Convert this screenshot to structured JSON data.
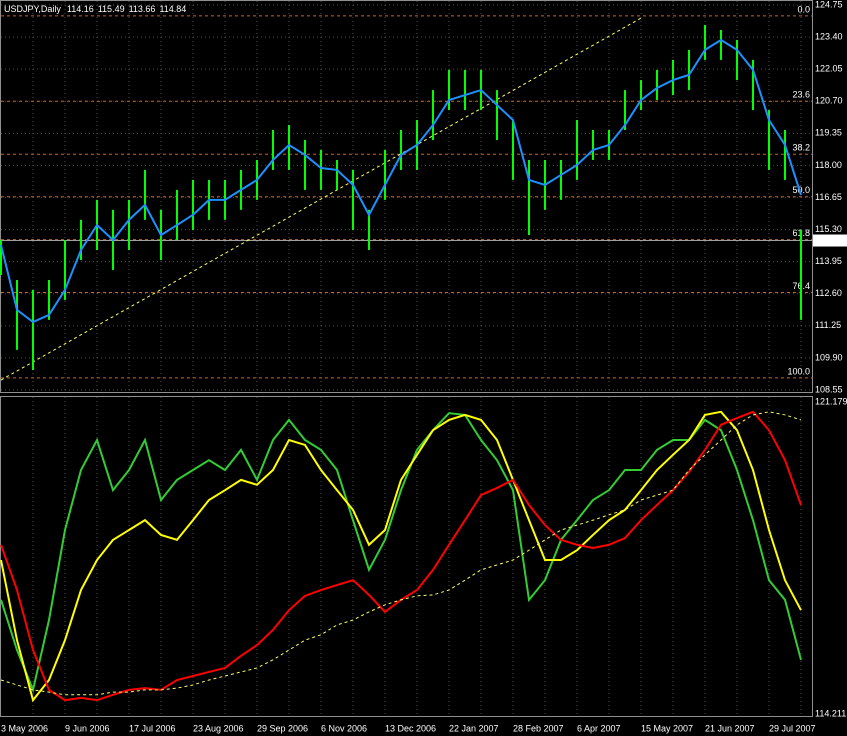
{
  "chart_data": [
    {
      "type": "range",
      "title": "USDJPY,Daily",
      "ohlc": [
        114.16,
        115.49,
        113.66,
        114.84
      ],
      "last_price": 114.84,
      "color": "#00ff00",
      "high": [
        114.86,
        113.18,
        112.76,
        113.18,
        114.86,
        115.71,
        116.55,
        116.13,
        116.55,
        117.81,
        116.13,
        116.97,
        117.39,
        117.39,
        117.39,
        117.81,
        118.23,
        119.49,
        119.7,
        119.07,
        118.65,
        118.23,
        117.81,
        116.13,
        118.65,
        119.49,
        119.91,
        121.17,
        122.02,
        122.02,
        122.02,
        121.17,
        119.91,
        118.23,
        118.23,
        118.23,
        119.91,
        119.49,
        119.49,
        121.17,
        121.59,
        122.02,
        122.44,
        122.86,
        123.91,
        123.7,
        123.28,
        122.44,
        120.33,
        119.49,
        115.28
      ],
      "low": [
        113.39,
        110.24,
        109.39,
        111.5,
        112.34,
        114.02,
        114.44,
        113.6,
        114.44,
        115.71,
        114.02,
        114.86,
        115.28,
        115.71,
        115.71,
        116.13,
        116.55,
        117.81,
        117.81,
        116.97,
        116.97,
        116.97,
        115.28,
        114.44,
        116.55,
        117.81,
        117.81,
        119.07,
        120.33,
        120.33,
        120.33,
        119.07,
        117.39,
        115.07,
        116.13,
        116.55,
        117.39,
        118.23,
        118.23,
        119.49,
        120.33,
        120.75,
        120.96,
        121.17,
        122.44,
        122.44,
        121.59,
        120.33,
        117.81,
        117.39,
        111.5
      ],
      "series": [
        {
          "color": "#1e90ff",
          "values": [
            114.65,
            111.92,
            111.41,
            111.71,
            112.76,
            114.44,
            115.49,
            114.86,
            115.71,
            116.34,
            115.07,
            115.49,
            115.92,
            116.55,
            116.55,
            116.97,
            117.39,
            118.23,
            118.86,
            118.44,
            117.89,
            117.81,
            117.18,
            115.92,
            117.18,
            118.44,
            118.86,
            119.7,
            120.75,
            120.96,
            121.17,
            120.54,
            119.91,
            117.39,
            117.18,
            117.6,
            118.02,
            118.65,
            118.86,
            119.7,
            120.75,
            121.26,
            121.59,
            121.81,
            122.86,
            123.28,
            122.86,
            122.02,
            119.91,
            118.86,
            116.76
          ]
        }
      ],
      "trendline": {
        "x": [
          0,
          40
        ],
        "values": [
          108.97,
          124.2
        ],
        "color": "#ffff66"
      },
      "fib_color": "#c8641e",
      "fib_levels": [
        {
          "value": 124.29,
          "label": "0.0"
        },
        {
          "value": 120.7,
          "label": "23.6"
        },
        {
          "value": 118.47,
          "label": "38.2"
        },
        {
          "value": 116.68,
          "label": "50.0"
        },
        {
          "value": 114.88,
          "label": "61.8"
        },
        {
          "value": 112.65,
          "label": "76.4"
        },
        {
          "value": 109.06,
          "label": "100.0"
        }
      ],
      "ylim": [
        108.55,
        124.75
      ],
      "yticks": [
        124.75,
        {
          "value": 123.4,
          "label": "123.40"
        },
        122.05,
        {
          "value": 120.7,
          "label": "120.70"
        },
        119.35,
        {
          "value": 118,
          "label": "118.00"
        },
        116.65,
        {
          "value": 115.3,
          "label": "115.30"
        },
        113.95,
        {
          "value": 112.6,
          "label": "112.60"
        },
        111.25,
        {
          "value": 109.9,
          "label": "109.90"
        },
        108.55
      ],
      "grid": true
    },
    {
      "type": "line",
      "categories": [
        "3 May 2006",
        null,
        null,
        null,
        "9 Jun 2006",
        null,
        null,
        null,
        "17 Jul 2006",
        null,
        null,
        null,
        "23 Aug 2006",
        null,
        null,
        null,
        "29 Sep 2006",
        null,
        null,
        null,
        "6 Nov 2006",
        null,
        null,
        null,
        "13 Dec 2006",
        null,
        null,
        null,
        "22 Jan 2007",
        null,
        null,
        null,
        "28 Feb 2007",
        null,
        null,
        null,
        "6 Apr 2007",
        null,
        null,
        null,
        "15 May 2007",
        null,
        null,
        null,
        "21 Jun 2007",
        null,
        null,
        null,
        "29 Jul 2007",
        null,
        null
      ],
      "series": [
        {
          "color": "#32cd32",
          "values": [
            116.76,
            115.64,
            114.75,
            116.31,
            118.32,
            119.66,
            120.33,
            119.21,
            119.66,
            120.33,
            118.99,
            119.44,
            119.66,
            119.88,
            119.66,
            120.11,
            119.44,
            120.33,
            120.78,
            120.33,
            120.11,
            119.66,
            118.54,
            117.43,
            118.1,
            119.21,
            120.11,
            120.55,
            120.93,
            120.89,
            120.33,
            119.88,
            119.21,
            116.76,
            117.2,
            118.1,
            118.54,
            118.99,
            119.21,
            119.66,
            119.66,
            120.11,
            120.33,
            120.33,
            120.78,
            120.55,
            119.66,
            118.54,
            117.2,
            116.76,
            115.42
          ]
        },
        {
          "color": "#ffff00",
          "values": [
            117.65,
            115.86,
            114.52,
            114.97,
            115.86,
            116.98,
            117.65,
            118.1,
            118.32,
            118.54,
            118.21,
            118.1,
            118.54,
            118.99,
            119.21,
            119.44,
            119.33,
            119.66,
            120.33,
            120.22,
            119.66,
            119.21,
            118.77,
            117.99,
            118.32,
            119.44,
            120.0,
            120.55,
            120.78,
            120.89,
            120.78,
            120.33,
            119.44,
            118.54,
            117.65,
            117.65,
            117.87,
            118.21,
            118.54,
            118.77,
            119.21,
            119.66,
            120.0,
            120.33,
            120.89,
            120.96,
            120.55,
            119.66,
            118.32,
            117.2,
            116.53
          ]
        },
        {
          "color": "#ff0000",
          "values": [
            117.99,
            116.98,
            115.64,
            114.75,
            114.52,
            114.57,
            114.52,
            114.64,
            114.75,
            114.79,
            114.75,
            114.97,
            115.06,
            115.15,
            115.24,
            115.51,
            115.75,
            116.09,
            116.53,
            116.85,
            116.98,
            117.09,
            117.2,
            116.87,
            116.49,
            116.76,
            116.98,
            117.43,
            117.99,
            118.54,
            119.1,
            119.26,
            119.44,
            118.88,
            118.43,
            118.1,
            117.99,
            117.92,
            117.99,
            118.14,
            118.54,
            118.88,
            119.21,
            119.62,
            120.11,
            120.67,
            120.82,
            120.96,
            120.55,
            119.88,
            118.88
          ]
        },
        {
          "color": "#ffff66",
          "dash": true,
          "values": [
            114.97,
            114.86,
            114.75,
            114.7,
            114.64,
            114.64,
            114.64,
            114.7,
            114.7,
            114.75,
            114.75,
            114.79,
            114.86,
            114.97,
            115.06,
            115.15,
            115.24,
            115.42,
            115.64,
            115.86,
            115.98,
            116.2,
            116.31,
            116.49,
            116.65,
            116.76,
            116.85,
            116.87,
            116.98,
            117.2,
            117.43,
            117.54,
            117.65,
            117.87,
            118.1,
            118.32,
            118.43,
            118.54,
            118.66,
            118.77,
            118.99,
            119.1,
            119.21,
            119.66,
            120.0,
            120.33,
            120.67,
            120.89,
            120.96,
            120.89,
            120.78
          ]
        }
      ],
      "ylim": [
        114.211,
        121.179
      ],
      "yticks": [
        114.211,
        121.179
      ],
      "grid": false
    }
  ]
}
